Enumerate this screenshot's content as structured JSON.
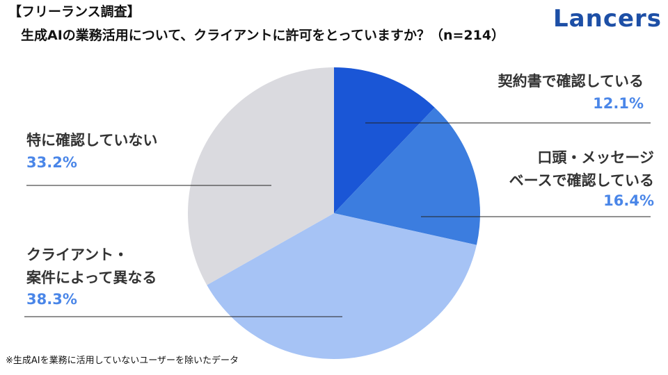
{
  "chart_data": {
    "type": "pie",
    "title": "【フリーランス調査】",
    "subtitle": "生成AIの業務活用について、クライアントに許可をとっていますか？（n=214）",
    "logo": "Lancers",
    "footnote": "※生成AIを業務に活用していないユーザーを除いたデータ",
    "categories": [
      "契約書で確認している",
      "口頭・メッセージ\nベースで確認している",
      "クライアント・\n案件によって異なる",
      "特に確認していない"
    ],
    "values": [
      12.1,
      16.4,
      38.3,
      33.2
    ],
    "value_labels": [
      "12.1%",
      "16.4%",
      "38.3%",
      "33.2%"
    ],
    "colors": [
      "#1a56d6",
      "#3c7ddf",
      "#a6c3f5",
      "#dadadf"
    ],
    "label_color": "#4a86e8"
  }
}
